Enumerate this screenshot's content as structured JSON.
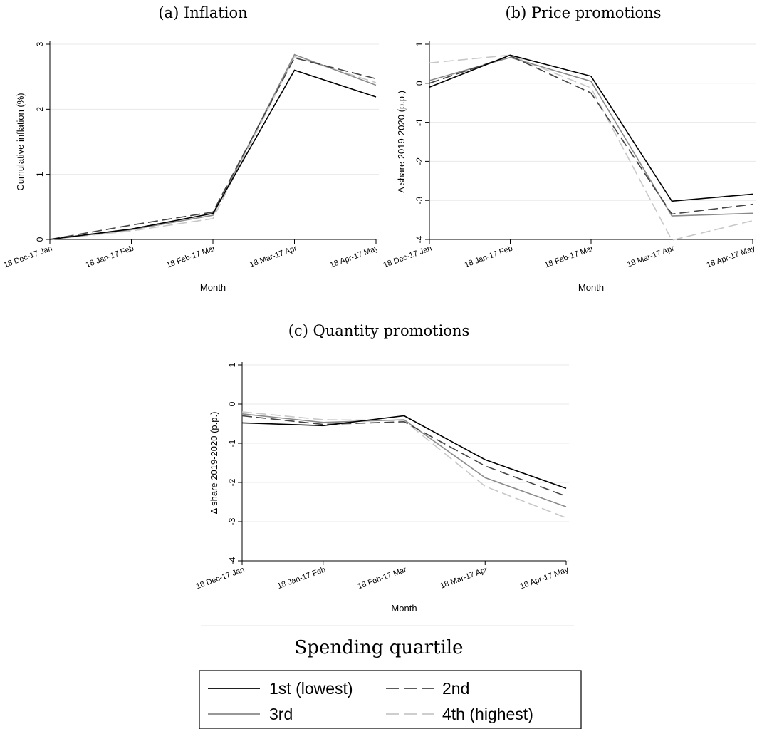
{
  "figure": {
    "legend_title": "Spending quartile",
    "legend_entries": [
      {
        "label": "1st (lowest)",
        "color": "#000000",
        "dash": "solid"
      },
      {
        "label": "2nd",
        "color": "#444444",
        "dash": "dashed"
      },
      {
        "label": "3rd",
        "color": "#8a8a8a",
        "dash": "solid"
      },
      {
        "label": "4th (highest)",
        "color": "#c8c8c8",
        "dash": "dashed"
      }
    ]
  },
  "chart_data": [
    {
      "type": "line",
      "title": "(a) Inflation",
      "xlabel": "Month",
      "ylabel": "Cumulative inflation (%)",
      "categories": [
        "18 Dec-17 Jan",
        "18 Jan-17 Feb",
        "18 Feb-17 Mar",
        "18 Mar-17 Apr",
        "18 Apr-17 May"
      ],
      "ylim": [
        0,
        3
      ],
      "yticks": [
        "0",
        "1",
        "2",
        "3"
      ],
      "grid": true,
      "series": [
        {
          "name": "1st (lowest)",
          "values": [
            0,
            0.16,
            0.4,
            2.6,
            2.19
          ]
        },
        {
          "name": "2nd",
          "values": [
            0,
            0.22,
            0.42,
            2.79,
            2.47
          ]
        },
        {
          "name": "3rd",
          "values": [
            0,
            0.15,
            0.37,
            2.84,
            2.37
          ]
        },
        {
          "name": "4th (highest)",
          "values": [
            0,
            0.13,
            0.32,
            2.81,
            2.41
          ]
        }
      ]
    },
    {
      "type": "line",
      "title": "(b) Price promotions",
      "xlabel": "Month",
      "ylabel": "Δ share 2019-2020 (p.p.)",
      "categories": [
        "18 Dec-17 Jan",
        "18 Jan-17 Feb",
        "18 Feb-17 Mar",
        "18 Mar-17 Apr",
        "18 Apr-17 May"
      ],
      "ylim": [
        -4,
        1
      ],
      "yticks": [
        "-4",
        "-3",
        "-2",
        "-1",
        "0",
        "1"
      ],
      "grid": true,
      "series": [
        {
          "name": "1st (lowest)",
          "values": [
            -0.1,
            0.72,
            0.18,
            -3.02,
            -2.84
          ]
        },
        {
          "name": "2nd",
          "values": [
            0.0,
            0.7,
            -0.25,
            -3.35,
            -3.1
          ]
        },
        {
          "name": "3rd",
          "values": [
            0.07,
            0.66,
            0.05,
            -3.4,
            -3.33
          ]
        },
        {
          "name": "4th (highest)",
          "values": [
            0.52,
            0.72,
            -0.12,
            -4.02,
            -3.52
          ]
        }
      ]
    },
    {
      "type": "line",
      "title": "(c) Quantity promotions",
      "xlabel": "Month",
      "ylabel": "Δ share 2019-2020 (p.p.)",
      "categories": [
        "18 Dec-17 Jan",
        "18 Jan-17 Feb",
        "18 Feb-17 Mar",
        "18 Mar-17 Apr",
        "18 Apr-17 May"
      ],
      "ylim": [
        -4,
        1
      ],
      "yticks": [
        "-4",
        "-3",
        "-2",
        "-1",
        "0",
        "1"
      ],
      "grid": true,
      "series": [
        {
          "name": "1st (lowest)",
          "values": [
            -0.48,
            -0.55,
            -0.3,
            -1.42,
            -2.15
          ]
        },
        {
          "name": "2nd",
          "values": [
            -0.3,
            -0.52,
            -0.45,
            -1.58,
            -2.35
          ]
        },
        {
          "name": "3rd",
          "values": [
            -0.25,
            -0.47,
            -0.4,
            -1.88,
            -2.62
          ]
        },
        {
          "name": "4th (highest)",
          "values": [
            -0.2,
            -0.4,
            -0.42,
            -2.1,
            -2.9
          ]
        }
      ]
    }
  ]
}
